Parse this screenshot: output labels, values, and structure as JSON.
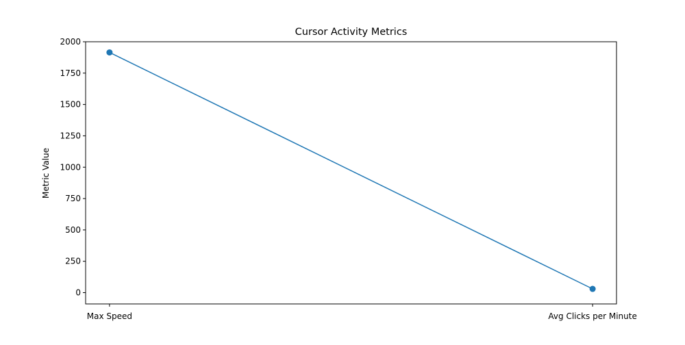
{
  "chart_data": {
    "type": "line",
    "title": "Cursor Activity Metrics",
    "xlabel": "",
    "ylabel": "Metric Value",
    "categories": [
      "Max Speed",
      "Avg Clicks per Minute"
    ],
    "series": [
      {
        "values": [
          1915,
          30
        ],
        "color": "#1f77b4",
        "marker": "circle"
      }
    ],
    "ylim": [
      -90,
      2000
    ],
    "yticks": [
      0,
      250,
      500,
      750,
      1000,
      1250,
      1500,
      1750,
      2000
    ],
    "grid": false
  }
}
